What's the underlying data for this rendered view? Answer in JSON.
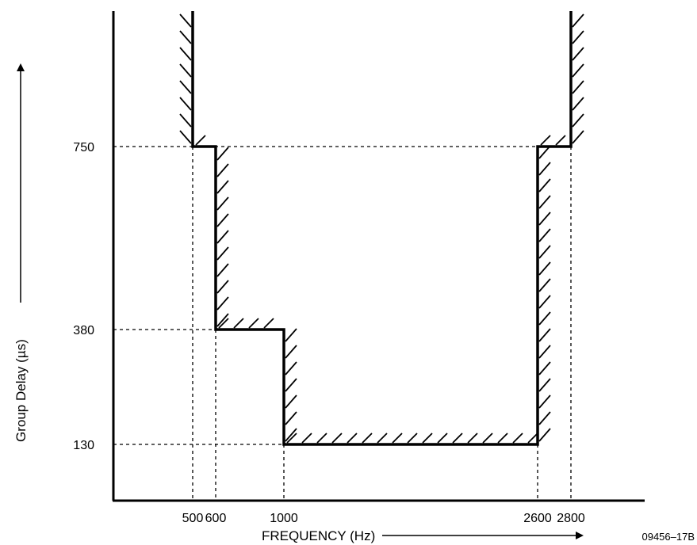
{
  "chart_data": {
    "type": "line",
    "title": "",
    "xlabel": "FREQUENCY (Hz)",
    "ylabel": "Group Delay (µs)",
    "figure_id": "09456–17B",
    "x_ticks": [
      {
        "value": 500,
        "label": "500"
      },
      {
        "value": 600,
        "label": "600"
      },
      {
        "value": 1000,
        "label": "1000"
      },
      {
        "value": 2600,
        "label": "2600"
      },
      {
        "value": 2800,
        "label": "2800"
      }
    ],
    "y_ticks": [
      {
        "value": 130,
        "label": "130"
      },
      {
        "value": 380,
        "label": "380"
      },
      {
        "value": 750,
        "label": "750"
      }
    ],
    "series": [
      {
        "points": [
          {
            "x": 500,
            "y": 1000
          },
          {
            "x": 500,
            "y": 750
          },
          {
            "x": 600,
            "y": 750
          },
          {
            "x": 600,
            "y": 380
          },
          {
            "x": 1000,
            "y": 380
          },
          {
            "x": 1000,
            "y": 130
          },
          {
            "x": 2600,
            "y": 130
          },
          {
            "x": 2600,
            "y": 750
          },
          {
            "x": 2800,
            "y": 750
          },
          {
            "x": 2800,
            "y": 1000
          }
        ]
      }
    ],
    "grid": false,
    "colors": {
      "line": "#000000",
      "background": "#ffffff"
    }
  }
}
